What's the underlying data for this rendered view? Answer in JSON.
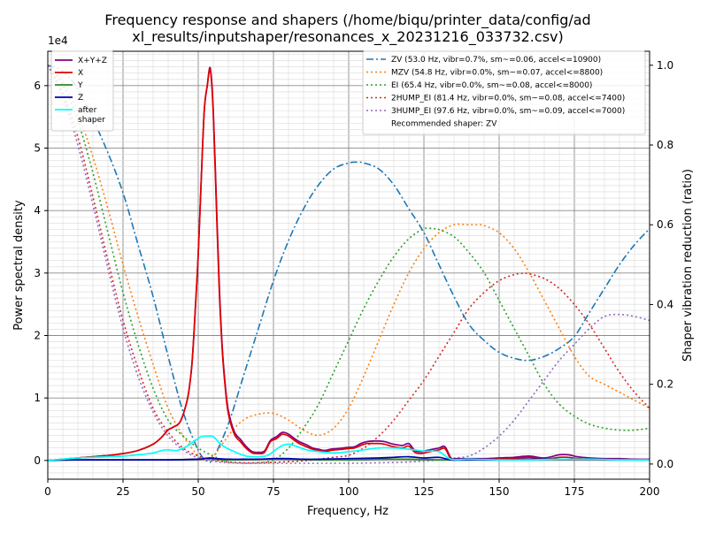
{
  "chart_data": {
    "type": "line",
    "title_line1": "Frequency response and shapers (/home/biqu/printer_data/config/ad",
    "title_line2": "xl_results/inputshaper/resonances_x_20231216_033732.csv)",
    "xlabel": "Frequency, Hz",
    "ylabel": "Power spectral density",
    "y2label": "Shaper vibration reduction (ratio)",
    "y_exponent": "1e4",
    "xlim": [
      0,
      200
    ],
    "ylim": [
      -0.3,
      6.55
    ],
    "y2lim": [
      -0.038,
      1.035
    ],
    "grid": true,
    "minor_grid": true,
    "x_ticks": [
      0,
      25,
      50,
      75,
      100,
      125,
      150,
      175,
      200
    ],
    "x_tick_labels": [
      "0",
      "25",
      "50",
      "75",
      "100",
      "125",
      "150",
      "175",
      "200"
    ],
    "y_ticks": [
      0,
      1,
      2,
      3,
      4,
      5,
      6
    ],
    "y_tick_labels": [
      "0",
      "1",
      "2",
      "3",
      "4",
      "5",
      "6"
    ],
    "y2_ticks": [
      0,
      0.2,
      0.4,
      0.6,
      0.8,
      1.0
    ],
    "y2_tick_labels": [
      "0.0",
      "0.2",
      "0.4",
      "0.6",
      "0.8",
      "1.0"
    ],
    "psd_legend_location": "upper left",
    "shaper_legend_location": "upper right",
    "psd_series": [
      {
        "name": "X+Y+Z",
        "color": "#800080",
        "width": 1.5,
        "x": [
          0,
          5,
          10,
          15,
          20,
          25,
          30,
          35,
          38,
          40,
          42,
          44,
          46,
          47,
          48,
          49,
          50,
          51,
          52,
          53,
          54,
          55,
          56,
          57,
          58,
          59,
          60,
          62,
          64,
          66,
          68,
          70,
          72,
          74,
          76,
          78,
          80,
          82,
          84,
          86,
          88,
          90,
          92,
          94,
          96,
          98,
          100,
          102,
          104,
          106,
          108,
          110,
          112,
          114,
          116,
          118,
          120,
          122,
          124,
          126,
          128,
          130,
          132,
          134,
          136,
          140,
          145,
          150,
          155,
          160,
          165,
          170,
          173,
          176,
          180,
          185,
          190,
          195,
          200
        ],
        "y": [
          0,
          0.02,
          0.04,
          0.06,
          0.08,
          0.11,
          0.16,
          0.26,
          0.38,
          0.49,
          0.54,
          0.62,
          0.9,
          1.15,
          1.6,
          2.4,
          3.3,
          4.5,
          5.6,
          6.0,
          6.28,
          5.6,
          4.2,
          2.8,
          1.8,
          1.2,
          0.8,
          0.46,
          0.34,
          0.22,
          0.14,
          0.13,
          0.15,
          0.32,
          0.38,
          0.45,
          0.42,
          0.35,
          0.29,
          0.25,
          0.2,
          0.18,
          0.16,
          0.18,
          0.19,
          0.2,
          0.21,
          0.22,
          0.27,
          0.3,
          0.31,
          0.31,
          0.3,
          0.27,
          0.25,
          0.24,
          0.27,
          0.16,
          0.14,
          0.16,
          0.18,
          0.2,
          0.22,
          0.04,
          0.03,
          0.03,
          0.03,
          0.04,
          0.05,
          0.07,
          0.04,
          0.09,
          0.09,
          0.06,
          0.04,
          0.03,
          0.03,
          0.02,
          0.02
        ]
      },
      {
        "name": "X",
        "color": "#e00000",
        "width": 1.5,
        "x": [
          0,
          5,
          10,
          15,
          20,
          25,
          30,
          35,
          38,
          40,
          42,
          44,
          46,
          47,
          48,
          49,
          50,
          51,
          52,
          53,
          54,
          55,
          56,
          57,
          58,
          59,
          60,
          62,
          64,
          66,
          68,
          70,
          72,
          74,
          76,
          78,
          80,
          82,
          84,
          86,
          88,
          90,
          92,
          94,
          96,
          98,
          100,
          102,
          104,
          106,
          108,
          110,
          112,
          114,
          116,
          118,
          120,
          122,
          124,
          126,
          128,
          130,
          132,
          134,
          136,
          140,
          145,
          150,
          155,
          160,
          165,
          170,
          173,
          176,
          180,
          185,
          190,
          195,
          200
        ],
        "y": [
          0,
          0.02,
          0.04,
          0.06,
          0.08,
          0.11,
          0.16,
          0.26,
          0.38,
          0.49,
          0.54,
          0.62,
          0.9,
          1.15,
          1.6,
          2.4,
          3.3,
          4.5,
          5.6,
          6.0,
          6.25,
          5.55,
          4.1,
          2.7,
          1.75,
          1.15,
          0.75,
          0.42,
          0.3,
          0.19,
          0.12,
          0.11,
          0.13,
          0.3,
          0.35,
          0.42,
          0.39,
          0.32,
          0.26,
          0.22,
          0.18,
          0.16,
          0.14,
          0.16,
          0.17,
          0.18,
          0.19,
          0.2,
          0.24,
          0.27,
          0.27,
          0.27,
          0.26,
          0.23,
          0.21,
          0.2,
          0.23,
          0.13,
          0.11,
          0.13,
          0.15,
          0.17,
          0.19,
          0.02,
          0.01,
          0.01,
          0.01,
          0.02,
          0.03,
          0.05,
          0.02,
          0.05,
          0.05,
          0.03,
          0.02,
          0.01,
          0.01,
          0.01,
          0.01
        ]
      },
      {
        "name": "Y",
        "color": "#2a8a2a",
        "width": 1.5,
        "x": [
          0,
          10,
          20,
          30,
          40,
          50,
          53,
          56,
          60,
          70,
          80,
          90,
          100,
          110,
          120,
          130,
          140,
          150,
          160,
          170,
          180,
          190,
          200
        ],
        "y": [
          0,
          0.01,
          0.01,
          0.01,
          0.01,
          0.02,
          0.03,
          0.02,
          0.01,
          0.02,
          0.02,
          0.01,
          0.01,
          0.02,
          0.02,
          0.01,
          0.01,
          0.01,
          0.01,
          0.02,
          0.02,
          0.01,
          0.01
        ]
      },
      {
        "name": "Z",
        "color": "#0000b0",
        "width": 1.5,
        "x": [
          0,
          5,
          10,
          20,
          30,
          40,
          50,
          52,
          54,
          56,
          60,
          65,
          70,
          75,
          80,
          85,
          90,
          100,
          110,
          115,
          120,
          125,
          130,
          134,
          140,
          150,
          160,
          170,
          180,
          190,
          200
        ],
        "y": [
          0,
          0.01,
          0.01,
          0.01,
          0.01,
          0.01,
          0.02,
          0.03,
          0.04,
          0.03,
          0.02,
          0.02,
          0.02,
          0.03,
          0.03,
          0.02,
          0.02,
          0.03,
          0.04,
          0.05,
          0.06,
          0.04,
          0.05,
          0.01,
          0.01,
          0.01,
          0.02,
          0.02,
          0.02,
          0.01,
          0.01
        ]
      },
      {
        "name": "after\nshaper",
        "color": "#00ffff",
        "width": 1.5,
        "x": [
          0,
          5,
          10,
          15,
          20,
          25,
          30,
          35,
          38,
          40,
          43,
          46,
          49,
          51,
          53,
          55,
          58,
          62,
          66,
          70,
          73,
          76,
          78,
          80,
          83,
          86,
          90,
          95,
          100,
          105,
          110,
          115,
          120,
          125,
          130,
          134,
          140,
          150,
          160,
          170,
          180,
          190,
          200
        ],
        "y": [
          0,
          0.02,
          0.04,
          0.05,
          0.06,
          0.07,
          0.09,
          0.12,
          0.16,
          0.17,
          0.16,
          0.22,
          0.32,
          0.38,
          0.39,
          0.38,
          0.24,
          0.14,
          0.07,
          0.06,
          0.08,
          0.18,
          0.24,
          0.26,
          0.22,
          0.17,
          0.14,
          0.12,
          0.14,
          0.17,
          0.2,
          0.2,
          0.18,
          0.15,
          0.14,
          0.02,
          0.02,
          0.01,
          0.01,
          0.02,
          0.02,
          0.01,
          0.01
        ]
      }
    ],
    "shaper_series": [
      {
        "name": "ZV (53.0 Hz, vibr=0.7%, sm~=0.06, accel<=10900)",
        "color": "#1f77b4",
        "dash": "8,3,2,3",
        "x": [
          0,
          5,
          10,
          15,
          20,
          25,
          30,
          35,
          40,
          45,
          50,
          53,
          55,
          60,
          65,
          70,
          75,
          80,
          85,
          90,
          95,
          100,
          103,
          105,
          110,
          115,
          120,
          125,
          130,
          135,
          140,
          145,
          150,
          155,
          160,
          165,
          170,
          175,
          180,
          185,
          190,
          195,
          200
        ],
        "y": [
          1,
          0.985,
          0.94,
          0.865,
          0.78,
          0.68,
          0.55,
          0.42,
          0.27,
          0.13,
          0.035,
          0.007,
          0.015,
          0.1,
          0.22,
          0.34,
          0.46,
          0.56,
          0.64,
          0.7,
          0.74,
          0.755,
          0.757,
          0.755,
          0.74,
          0.7,
          0.64,
          0.58,
          0.5,
          0.42,
          0.35,
          0.31,
          0.28,
          0.265,
          0.26,
          0.27,
          0.29,
          0.32,
          0.38,
          0.44,
          0.5,
          0.55,
          0.59
        ]
      },
      {
        "name": "MZV (54.8 Hz, vibr=0.0%, sm~=0.07, accel<=8800)",
        "color": "#ff7f0e",
        "dash": "2,3",
        "x": [
          0,
          5,
          10,
          15,
          20,
          25,
          30,
          35,
          40,
          45,
          50,
          52,
          55,
          58,
          62,
          66,
          70,
          73,
          76,
          80,
          85,
          90,
          95,
          100,
          105,
          110,
          115,
          120,
          125,
          130,
          135,
          140,
          143,
          145,
          150,
          155,
          160,
          165,
          170,
          175,
          180,
          185,
          190,
          195,
          200
        ],
        "y": [
          1,
          0.96,
          0.88,
          0.77,
          0.64,
          0.5,
          0.37,
          0.25,
          0.14,
          0.07,
          0.02,
          0.01,
          0.02,
          0.05,
          0.09,
          0.115,
          0.125,
          0.128,
          0.125,
          0.11,
          0.085,
          0.072,
          0.09,
          0.14,
          0.22,
          0.31,
          0.4,
          0.48,
          0.54,
          0.58,
          0.6,
          0.6,
          0.6,
          0.598,
          0.58,
          0.54,
          0.48,
          0.41,
          0.34,
          0.27,
          0.22,
          0.2,
          0.18,
          0.16,
          0.14
        ]
      },
      {
        "name": "EI (65.4 Hz, vibr=0.0%, sm~=0.08, accel<=8000)",
        "color": "#2ca02c",
        "dash": "2,3",
        "x": [
          0,
          5,
          10,
          15,
          20,
          25,
          30,
          35,
          40,
          45,
          50,
          55,
          60,
          65,
          70,
          75,
          80,
          85,
          90,
          95,
          100,
          105,
          110,
          115,
          120,
          125,
          128,
          130,
          135,
          140,
          145,
          150,
          155,
          160,
          165,
          170,
          175,
          180,
          185,
          190,
          195,
          200
        ],
        "y": [
          1,
          0.95,
          0.86,
          0.73,
          0.58,
          0.43,
          0.3,
          0.19,
          0.11,
          0.07,
          0.04,
          0.02,
          0.005,
          0.002,
          0.003,
          0.01,
          0.04,
          0.09,
          0.15,
          0.23,
          0.31,
          0.39,
          0.46,
          0.52,
          0.565,
          0.59,
          0.59,
          0.588,
          0.57,
          0.53,
          0.48,
          0.41,
          0.34,
          0.27,
          0.2,
          0.15,
          0.12,
          0.1,
          0.09,
          0.085,
          0.085,
          0.09
        ]
      },
      {
        "name": "2HUMP_EI (81.4 Hz, vibr=0.0%, sm~=0.08, accel<=7400)",
        "color": "#d62728",
        "dash": "2,3",
        "x": [
          0,
          5,
          10,
          15,
          20,
          25,
          30,
          35,
          40,
          45,
          50,
          55,
          60,
          65,
          70,
          75,
          80,
          85,
          90,
          95,
          100,
          105,
          110,
          115,
          120,
          125,
          130,
          135,
          140,
          145,
          150,
          155,
          158,
          160,
          165,
          170,
          175,
          180,
          185,
          190,
          195,
          200
        ],
        "y": [
          1,
          0.93,
          0.82,
          0.67,
          0.51,
          0.36,
          0.24,
          0.14,
          0.08,
          0.04,
          0.02,
          0.01,
          0.005,
          0.003,
          0.003,
          0.004,
          0.006,
          0.008,
          0.012,
          0.017,
          0.022,
          0.04,
          0.07,
          0.11,
          0.16,
          0.21,
          0.27,
          0.33,
          0.39,
          0.43,
          0.46,
          0.475,
          0.478,
          0.477,
          0.465,
          0.44,
          0.4,
          0.35,
          0.29,
          0.23,
          0.18,
          0.14
        ]
      },
      {
        "name": "3HUMP_EI (97.6 Hz, vibr=0.0%, sm~=0.09, accel<=7000)",
        "color": "#9467bd",
        "dash": "2,3",
        "x": [
          0,
          5,
          10,
          15,
          20,
          25,
          30,
          35,
          40,
          45,
          50,
          55,
          60,
          70,
          80,
          90,
          100,
          110,
          120,
          130,
          135,
          140,
          145,
          150,
          155,
          160,
          165,
          170,
          175,
          180,
          185,
          190,
          195,
          200
        ],
        "y": [
          1,
          0.92,
          0.8,
          0.65,
          0.49,
          0.34,
          0.22,
          0.13,
          0.07,
          0.035,
          0.015,
          0.007,
          0.003,
          0.002,
          0.002,
          0.002,
          0.002,
          0.003,
          0.005,
          0.01,
          0.015,
          0.02,
          0.04,
          0.07,
          0.11,
          0.16,
          0.21,
          0.26,
          0.3,
          0.34,
          0.37,
          0.375,
          0.37,
          0.36
        ]
      }
    ],
    "recommended_label": "Recommended shaper: ZV"
  }
}
